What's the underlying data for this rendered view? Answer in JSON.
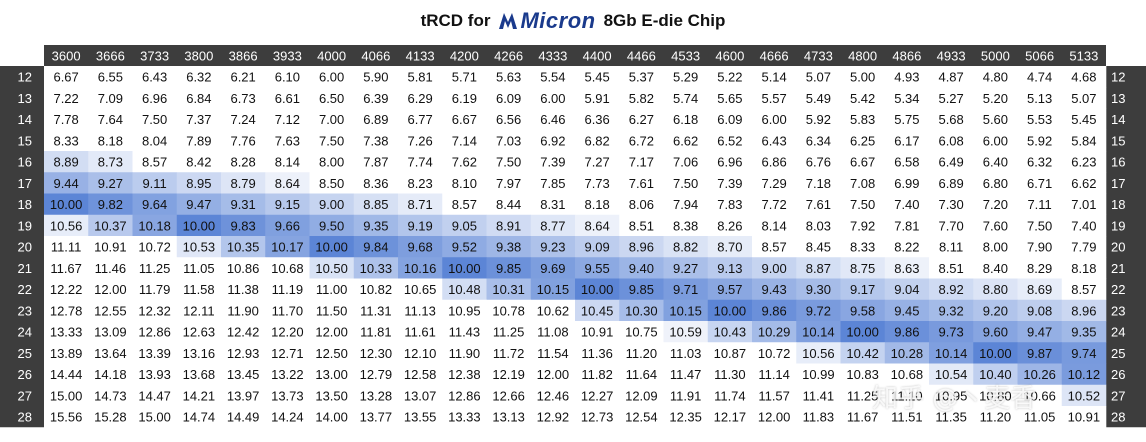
{
  "title": {
    "prefix": "tRCD for",
    "logo_text": "Micron",
    "suffix": "8Gb E-die Chip"
  },
  "watermark": "知乎 @丶麦香",
  "colors": {
    "header_bg": "#3d3d3d",
    "header_text": "#ffffff",
    "highlight_low": "#f1f4fb",
    "highlight_high": "#5c85d6"
  },
  "chart_data": {
    "type": "heatmap",
    "title": "tRCD for Micron 8Gb E-die Chip",
    "x": [
      3600,
      3666,
      3733,
      3800,
      3866,
      3933,
      4000,
      4066,
      4133,
      4200,
      4266,
      4333,
      4400,
      4466,
      4533,
      4600,
      4666,
      4733,
      4800,
      4866,
      4933,
      5000,
      5066,
      5133
    ],
    "y": [
      12,
      13,
      14,
      15,
      16,
      17,
      18,
      19,
      20,
      21,
      22,
      23,
      24,
      25,
      26,
      27,
      28
    ],
    "values": [
      [
        "6.67",
        "6.55",
        "6.43",
        "6.32",
        "6.21",
        "6.10",
        "6.00",
        "5.90",
        "5.81",
        "5.71",
        "5.63",
        "5.54",
        "5.45",
        "5.37",
        "5.29",
        "5.22",
        "5.14",
        "5.07",
        "5.00",
        "4.93",
        "4.87",
        "4.80",
        "4.74",
        "4.68"
      ],
      [
        "7.22",
        "7.09",
        "6.96",
        "6.84",
        "6.73",
        "6.61",
        "6.50",
        "6.39",
        "6.29",
        "6.19",
        "6.09",
        "6.00",
        "5.91",
        "5.82",
        "5.74",
        "5.65",
        "5.57",
        "5.49",
        "5.42",
        "5.34",
        "5.27",
        "5.20",
        "5.13",
        "5.07"
      ],
      [
        "7.78",
        "7.64",
        "7.50",
        "7.37",
        "7.24",
        "7.12",
        "7.00",
        "6.89",
        "6.77",
        "6.67",
        "6.56",
        "6.46",
        "6.36",
        "6.27",
        "6.18",
        "6.09",
        "6.00",
        "5.92",
        "5.83",
        "5.75",
        "5.68",
        "5.60",
        "5.53",
        "5.45"
      ],
      [
        "8.33",
        "8.18",
        "8.04",
        "7.89",
        "7.76",
        "7.63",
        "7.50",
        "7.38",
        "7.26",
        "7.14",
        "7.03",
        "6.92",
        "6.82",
        "6.72",
        "6.62",
        "6.52",
        "6.43",
        "6.34",
        "6.25",
        "6.17",
        "6.08",
        "6.00",
        "5.92",
        "5.84"
      ],
      [
        "8.89",
        "8.73",
        "8.57",
        "8.42",
        "8.28",
        "8.14",
        "8.00",
        "7.87",
        "7.74",
        "7.62",
        "7.50",
        "7.39",
        "7.27",
        "7.17",
        "7.06",
        "6.96",
        "6.86",
        "6.76",
        "6.67",
        "6.58",
        "6.49",
        "6.40",
        "6.32",
        "6.23"
      ],
      [
        "9.44",
        "9.27",
        "9.11",
        "8.95",
        "8.79",
        "8.64",
        "8.50",
        "8.36",
        "8.23",
        "8.10",
        "7.97",
        "7.85",
        "7.73",
        "7.61",
        "7.50",
        "7.39",
        "7.29",
        "7.18",
        "7.08",
        "6.99",
        "6.89",
        "6.80",
        "6.71",
        "6.62"
      ],
      [
        "10.00",
        "9.82",
        "9.64",
        "9.47",
        "9.31",
        "9.15",
        "9.00",
        "8.85",
        "8.71",
        "8.57",
        "8.44",
        "8.31",
        "8.18",
        "8.06",
        "7.94",
        "7.83",
        "7.72",
        "7.61",
        "7.50",
        "7.40",
        "7.30",
        "7.20",
        "7.11",
        "7.01"
      ],
      [
        "10.56",
        "10.37",
        "10.18",
        "10.00",
        "9.83",
        "9.66",
        "9.50",
        "9.35",
        "9.19",
        "9.05",
        "8.91",
        "8.77",
        "8.64",
        "8.51",
        "8.38",
        "8.26",
        "8.14",
        "8.03",
        "7.92",
        "7.81",
        "7.70",
        "7.60",
        "7.50",
        "7.40"
      ],
      [
        "11.11",
        "10.91",
        "10.72",
        "10.53",
        "10.35",
        "10.17",
        "10.00",
        "9.84",
        "9.68",
        "9.52",
        "9.38",
        "9.23",
        "9.09",
        "8.96",
        "8.82",
        "8.70",
        "8.57",
        "8.45",
        "8.33",
        "8.22",
        "8.11",
        "8.00",
        "7.90",
        "7.79"
      ],
      [
        "11.67",
        "11.46",
        "11.25",
        "11.05",
        "10.86",
        "10.68",
        "10.50",
        "10.33",
        "10.16",
        "10.00",
        "9.85",
        "9.69",
        "9.55",
        "9.40",
        "9.27",
        "9.13",
        "9.00",
        "8.87",
        "8.75",
        "8.63",
        "8.51",
        "8.40",
        "8.29",
        "8.18"
      ],
      [
        "12.22",
        "12.00",
        "11.79",
        "11.58",
        "11.38",
        "11.19",
        "11.00",
        "10.82",
        "10.65",
        "10.48",
        "10.31",
        "10.15",
        "10.00",
        "9.85",
        "9.71",
        "9.57",
        "9.43",
        "9.30",
        "9.17",
        "9.04",
        "8.92",
        "8.80",
        "8.69",
        "8.57"
      ],
      [
        "12.78",
        "12.55",
        "12.32",
        "12.11",
        "11.90",
        "11.70",
        "11.50",
        "11.31",
        "11.13",
        "10.95",
        "10.78",
        "10.62",
        "10.45",
        "10.30",
        "10.15",
        "10.00",
        "9.86",
        "9.72",
        "9.58",
        "9.45",
        "9.32",
        "9.20",
        "9.08",
        "8.96"
      ],
      [
        "13.33",
        "13.09",
        "12.86",
        "12.63",
        "12.42",
        "12.20",
        "12.00",
        "11.81",
        "11.61",
        "11.43",
        "11.25",
        "11.08",
        "10.91",
        "10.75",
        "10.59",
        "10.43",
        "10.29",
        "10.14",
        "10.00",
        "9.86",
        "9.73",
        "9.60",
        "9.47",
        "9.35"
      ],
      [
        "13.89",
        "13.64",
        "13.39",
        "13.16",
        "12.93",
        "12.71",
        "12.50",
        "12.30",
        "12.10",
        "11.90",
        "11.72",
        "11.54",
        "11.36",
        "11.20",
        "11.03",
        "10.87",
        "10.72",
        "10.56",
        "10.42",
        "10.28",
        "10.14",
        "10.00",
        "9.87",
        "9.74"
      ],
      [
        "14.44",
        "14.18",
        "13.93",
        "13.68",
        "13.45",
        "13.22",
        "13.00",
        "12.79",
        "12.58",
        "12.38",
        "12.19",
        "12.00",
        "11.82",
        "11.64",
        "11.47",
        "11.30",
        "11.14",
        "10.99",
        "10.83",
        "10.68",
        "10.54",
        "10.40",
        "10.26",
        "10.12"
      ],
      [
        "15.00",
        "14.73",
        "14.47",
        "14.21",
        "13.97",
        "13.73",
        "13.50",
        "13.28",
        "13.07",
        "12.86",
        "12.66",
        "12.46",
        "12.27",
        "12.09",
        "11.91",
        "11.74",
        "11.57",
        "11.41",
        "11.25",
        "11.10",
        "10.95",
        "10.80",
        "10.66",
        "10.52"
      ],
      [
        "15.56",
        "15.28",
        "15.00",
        "14.74",
        "14.49",
        "14.24",
        "14.00",
        "13.77",
        "13.55",
        "13.33",
        "13.13",
        "12.92",
        "12.73",
        "12.54",
        "12.35",
        "12.17",
        "12.00",
        "11.83",
        "11.67",
        "11.51",
        "11.35",
        "11.20",
        "11.05",
        "10.91"
      ]
    ],
    "highlight_range": [
      8.6,
      10.6
    ],
    "highlight_peak": 10.0,
    "row_labels_repeated_right": true
  }
}
